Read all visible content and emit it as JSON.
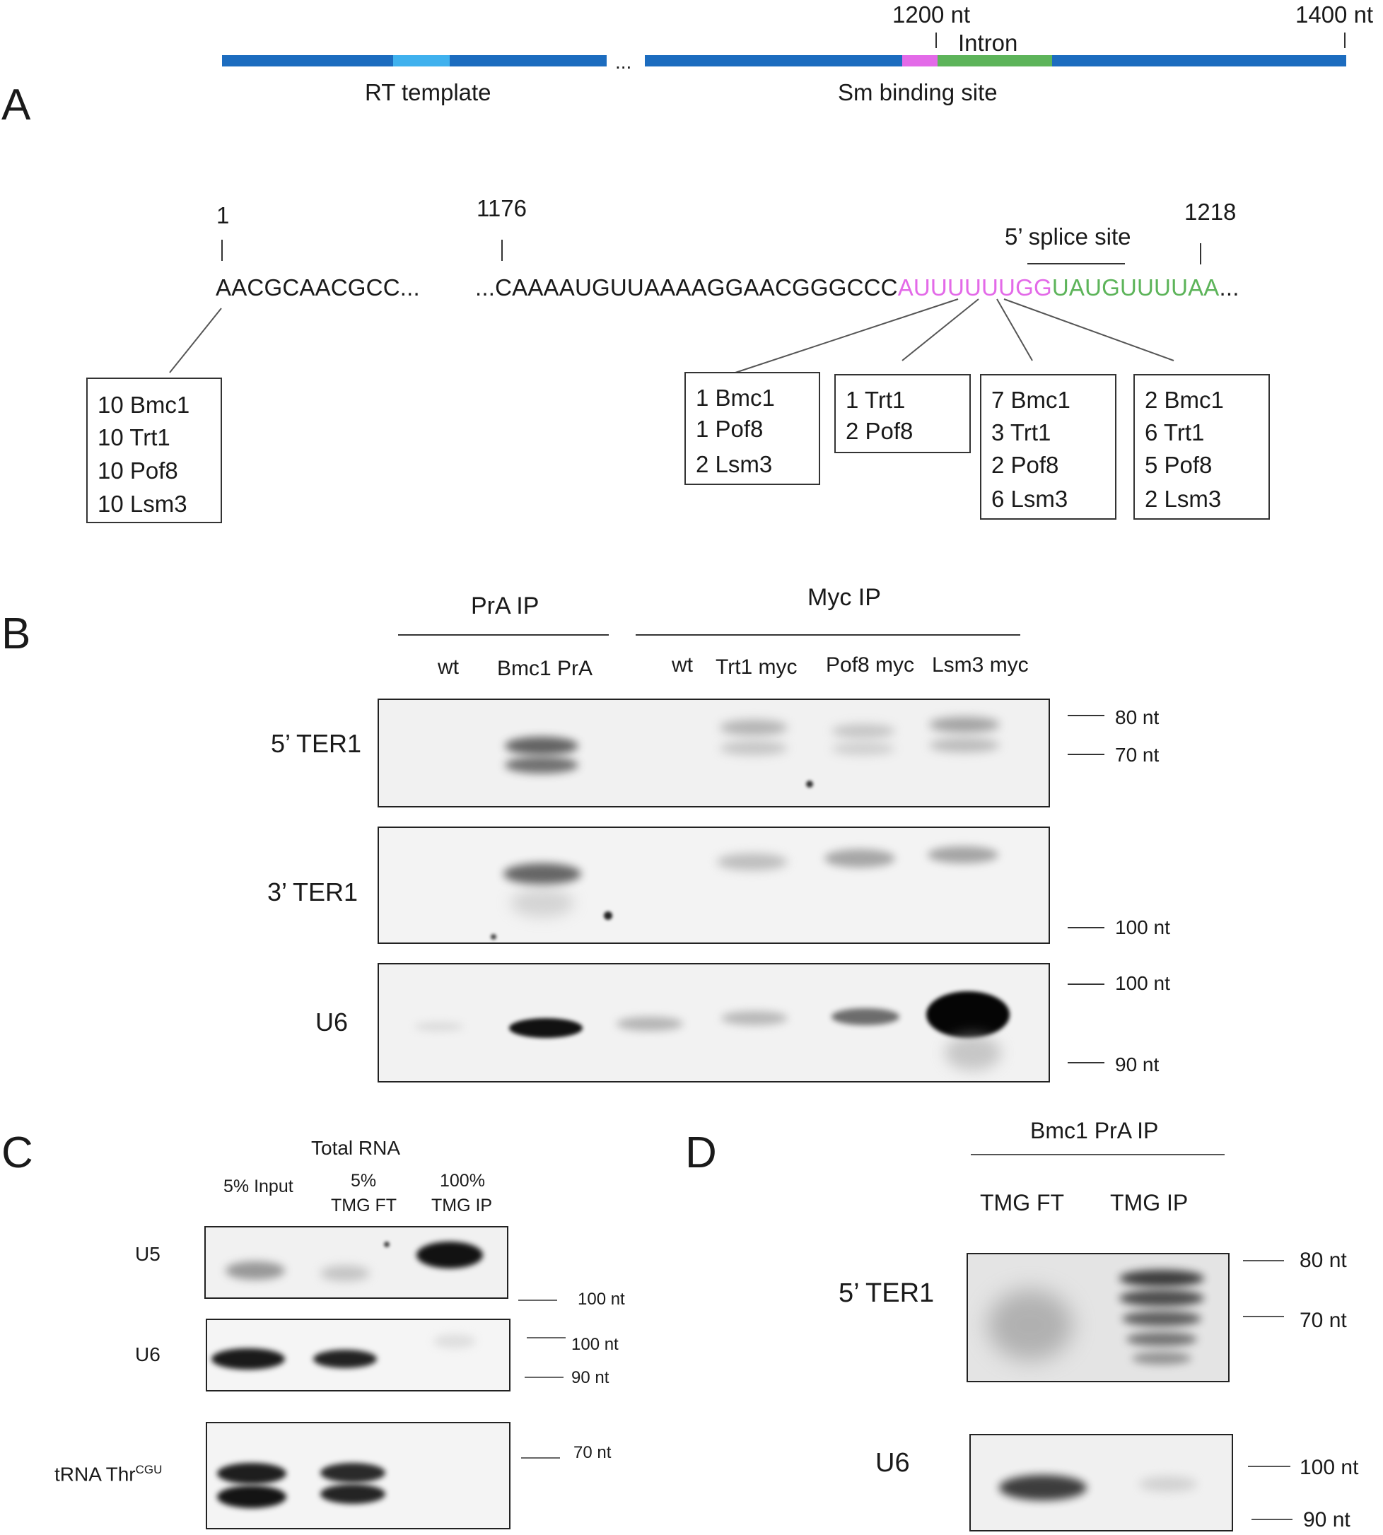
{
  "panels": {
    "a": "A",
    "b": "B",
    "c": "C",
    "d": "D"
  },
  "panel_a": {
    "pos_1200": "1200 nt",
    "pos_1400": "1400 nt",
    "intron": "Intron",
    "ellipsis": "...",
    "rt_template": "RT template",
    "sm_site": "Sm binding site",
    "pos_1": "1",
    "pos_1176": "1176",
    "pos_1218": "1218",
    "splice_site": "5’ splice site",
    "seq_left": "AACGCAACGCC...",
    "seq_black": "...CAAAAUGUUAAAAGGAACGGGCCC",
    "seq_pink": "AUUUUUUGG",
    "seq_green": "UAUGUUUUAA",
    "seq_tail": "...",
    "colors": {
      "dark_blue": "#1c6cbf",
      "light_blue": "#3fb1ee",
      "magenta": "#e36ae8",
      "green": "#5db45a"
    },
    "boxes": [
      [
        "10 Bmc1",
        "10 Trt1",
        "10 Pof8",
        "10 Lsm3"
      ],
      [
        "1 Bmc1",
        "1 Pof8",
        "2 Lsm3"
      ],
      [
        "1 Trt1",
        "2 Pof8"
      ],
      [
        "7 Bmc1",
        "3 Trt1",
        "2 Pof8",
        "6 Lsm3"
      ],
      [
        "2 Bmc1",
        "6 Trt1",
        "5 Pof8",
        "2 Lsm3"
      ]
    ]
  },
  "panel_b": {
    "pra_ip": "PrA IP",
    "myc_ip": "Myc IP",
    "lanes": [
      "wt",
      "Bmc1 PrA",
      "wt",
      "Trt1 myc",
      "Pof8 myc",
      "Lsm3 myc"
    ],
    "rows": [
      "5’ TER1",
      "3’ TER1",
      "U6"
    ],
    "markers": {
      "m80": "80 nt",
      "m70": "70 nt",
      "m100a": "100 nt",
      "m100b": "100 nt",
      "m90": "90 nt"
    }
  },
  "panel_c": {
    "title": "Total RNA",
    "lane1": "5% Input",
    "lane2a": "5%",
    "lane2b": "TMG FT",
    "lane3a": "100%",
    "lane3b": "TMG IP",
    "row_u5": "U5",
    "row_u6": "U6",
    "row_trna": "tRNA Thr",
    "row_trna_sup": "CGU",
    "markers": {
      "m100a": "100 nt",
      "m100b": "100 nt",
      "m90": "90 nt",
      "m70": "70 nt"
    }
  },
  "panel_d": {
    "title": "Bmc1 PrA IP",
    "lane1": "TMG FT",
    "lane2": "TMG IP",
    "row_ter1": "5’ TER1",
    "row_u6": "U6",
    "markers": {
      "m80": "80 nt",
      "m70": "70 nt",
      "m100": "100 nt",
      "m90": "90 nt"
    }
  }
}
